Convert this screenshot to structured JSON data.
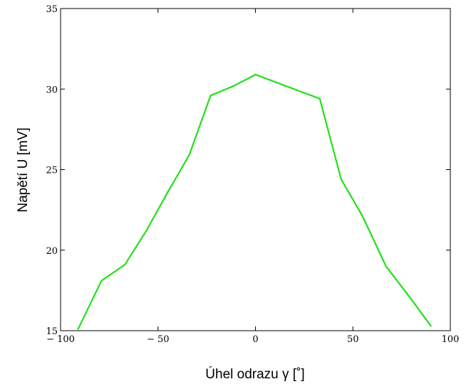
{
  "chart_data": {
    "type": "line",
    "title": "",
    "xlabel": "Úhel odrazu γ  [˚]",
    "ylabel": "Napětí  U  [mV]",
    "xlim": [
      -100,
      100
    ],
    "ylim": [
      15,
      35
    ],
    "xticks": [
      -100,
      -50,
      0,
      50,
      100
    ],
    "xtick_labels": [
      "− 100",
      "− 50",
      "0",
      "50",
      "100"
    ],
    "yticks": [
      15,
      20,
      25,
      30,
      35
    ],
    "ytick_labels": [
      "15",
      "20",
      "25",
      "30",
      "35"
    ],
    "grid": false,
    "series": [
      {
        "color": "#22e01a",
        "x": [
          -91,
          -79,
          -67,
          -56,
          -45,
          -34,
          -23,
          -11,
          0,
          11,
          22,
          33,
          44,
          55,
          67,
          79,
          90
        ],
        "y": [
          15.1,
          18.1,
          19.1,
          21.2,
          23.6,
          25.9,
          29.6,
          30.2,
          30.9,
          30.4,
          29.9,
          29.4,
          24.4,
          22.1,
          19.0,
          17.1,
          15.3
        ]
      }
    ]
  }
}
